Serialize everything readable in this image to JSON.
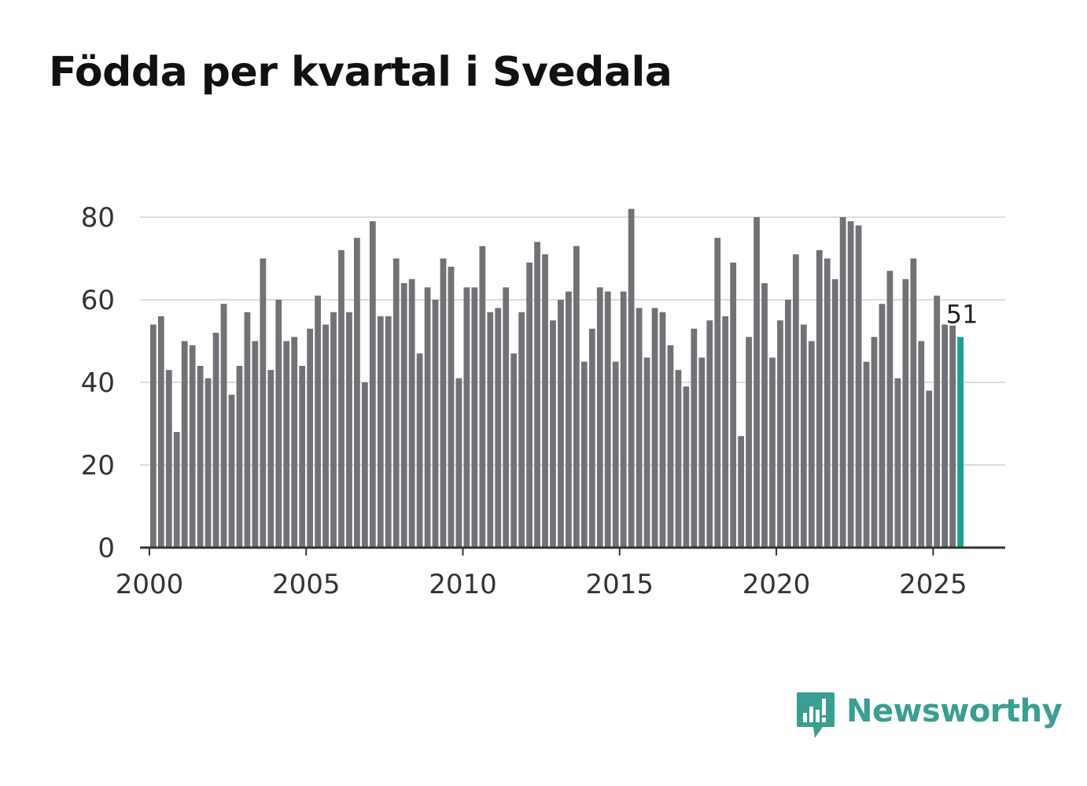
{
  "title": "Födda per kvartal i Svedala",
  "brand": {
    "name": "Newsworthy",
    "icon": "newsworthy-logo-icon",
    "color": "#3a9e92"
  },
  "colors": {
    "bar": "#727176",
    "highlight": "#16a394",
    "grid": "#dddddd",
    "axis": "#333333",
    "tick_text": "#333333"
  },
  "chart_data": {
    "type": "bar",
    "title": "Födda per kvartal i Svedala",
    "xlabel": "",
    "ylabel": "",
    "x_start": 2000.0,
    "x_step": 0.25,
    "xlim": [
      1999.7,
      2027.3
    ],
    "ylim": [
      0,
      80
    ],
    "yticks": [
      0,
      20,
      40,
      60,
      80
    ],
    "xticks": [
      2000,
      2005,
      2010,
      2015,
      2020,
      2025
    ],
    "grid": true,
    "highlight_last": true,
    "last_label": "51",
    "values": [
      54,
      56,
      43,
      28,
      50,
      49,
      44,
      41,
      52,
      59,
      37,
      44,
      57,
      50,
      70,
      43,
      60,
      50,
      51,
      44,
      53,
      61,
      54,
      57,
      72,
      57,
      75,
      40,
      79,
      56,
      56,
      70,
      64,
      65,
      47,
      63,
      60,
      70,
      68,
      41,
      63,
      63,
      73,
      57,
      58,
      63,
      47,
      57,
      69,
      74,
      71,
      55,
      60,
      62,
      73,
      45,
      53,
      63,
      62,
      45,
      62,
      82,
      58,
      46,
      58,
      57,
      49,
      43,
      39,
      53,
      46,
      55,
      75,
      56,
      69,
      27,
      51,
      80,
      64,
      46,
      55,
      60,
      71,
      54,
      50,
      72,
      70,
      65,
      80,
      79,
      78,
      45,
      51,
      59,
      67,
      41,
      65,
      70,
      50,
      38,
      61,
      54,
      54,
      51
    ]
  }
}
